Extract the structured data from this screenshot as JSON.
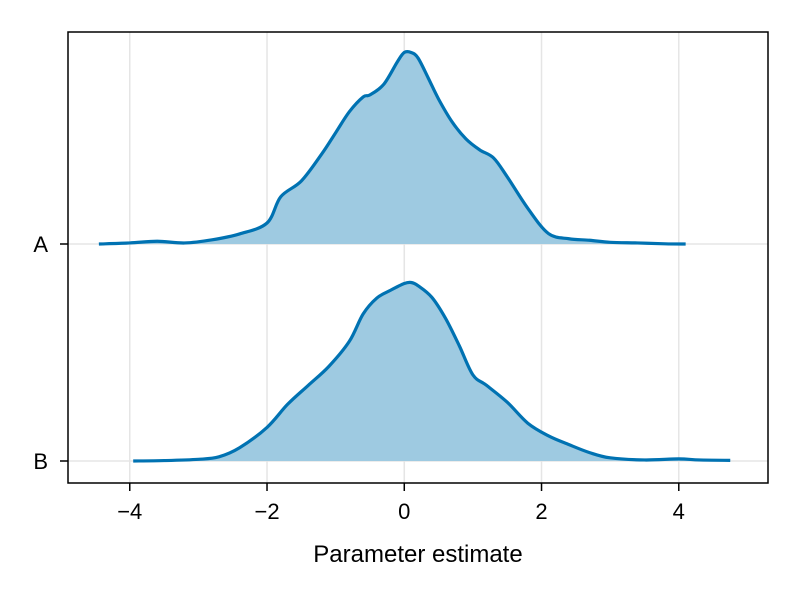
{
  "chart_data": {
    "type": "area",
    "title": "",
    "xlabel": "Parameter estimate",
    "ylabel": "",
    "xlim": [
      -4.9,
      5.3
    ],
    "xticks": [
      -4,
      -2,
      0,
      2,
      4
    ],
    "xtick_labels": [
      "−4",
      "−2",
      "0",
      "2",
      "4"
    ],
    "categories": [
      "A",
      "B"
    ],
    "grid": true,
    "legend": "none",
    "colors": {
      "line": "#0072B2",
      "fill": "#9ECAE1",
      "grid": "#E5E5E5"
    },
    "series": [
      {
        "category": "A",
        "x": [
          -4.45,
          -4.0,
          -3.6,
          -3.2,
          -2.8,
          -2.4,
          -2.0,
          -1.8,
          -1.5,
          -1.2,
          -1.0,
          -0.8,
          -0.6,
          -0.5,
          -0.3,
          -0.1,
          0.0,
          0.1,
          0.2,
          0.35,
          0.5,
          0.7,
          0.9,
          1.1,
          1.3,
          1.5,
          1.8,
          2.1,
          2.4,
          2.7,
          3.0,
          3.4,
          3.8,
          4.1
        ],
        "y": [
          0.0,
          0.005,
          0.013,
          0.005,
          0.02,
          0.048,
          0.1,
          0.225,
          0.3,
          0.43,
          0.53,
          0.63,
          0.7,
          0.71,
          0.76,
          0.868,
          0.912,
          0.912,
          0.886,
          0.79,
          0.69,
          0.58,
          0.5,
          0.448,
          0.41,
          0.32,
          0.17,
          0.05,
          0.025,
          0.018,
          0.008,
          0.005,
          0.001,
          0.0
        ]
      },
      {
        "category": "B",
        "x": [
          -3.95,
          -3.5,
          -3.0,
          -2.7,
          -2.4,
          -2.0,
          -1.7,
          -1.4,
          -1.1,
          -0.8,
          -0.6,
          -0.4,
          -0.2,
          0.0,
          0.1,
          0.2,
          0.4,
          0.6,
          0.8,
          1.0,
          1.2,
          1.5,
          1.8,
          2.1,
          2.4,
          2.7,
          3.0,
          3.5,
          4.0,
          4.3,
          4.75
        ],
        "y": [
          0.0,
          0.002,
          0.008,
          0.02,
          0.063,
          0.16,
          0.27,
          0.36,
          0.45,
          0.57,
          0.7,
          0.776,
          0.813,
          0.845,
          0.85,
          0.835,
          0.78,
          0.68,
          0.55,
          0.41,
          0.36,
          0.28,
          0.18,
          0.12,
          0.078,
          0.04,
          0.015,
          0.005,
          0.01,
          0.005,
          0.003
        ]
      }
    ]
  }
}
